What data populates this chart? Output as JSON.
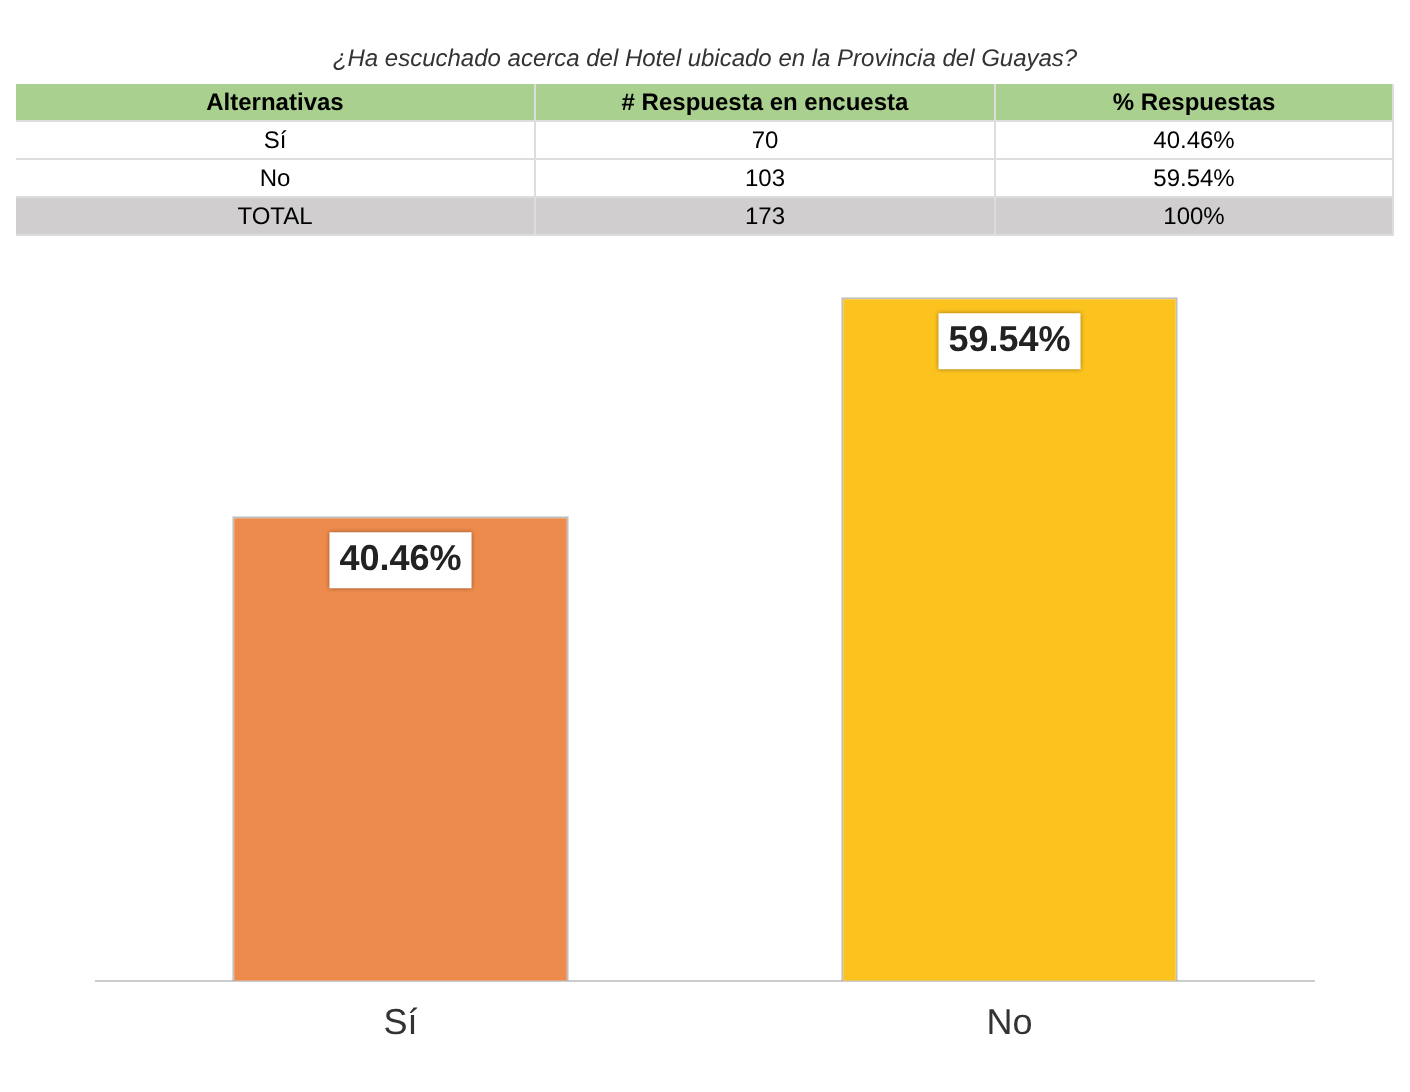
{
  "chart_data": {
    "type": "bar",
    "title": "¿Ha escuchado acerca del Hotel ubicado en la Provincia del Guayas?",
    "annotations": [
      "Alternativas",
      "# Respuesta en encuesta",
      "% Respuestas",
      "Sí",
      "70",
      "40.46%",
      "No",
      "103",
      "59.54%",
      "TOTAL",
      "173",
      "100%"
    ],
    "categories": [
      "Sí",
      "No"
    ],
    "values": [
      40.46,
      59.54
    ],
    "colors": [
      "#ed8b4c",
      "#fcc21e"
    ],
    "value_labels": [
      "40.46%",
      "59.54%"
    ]
  }
}
